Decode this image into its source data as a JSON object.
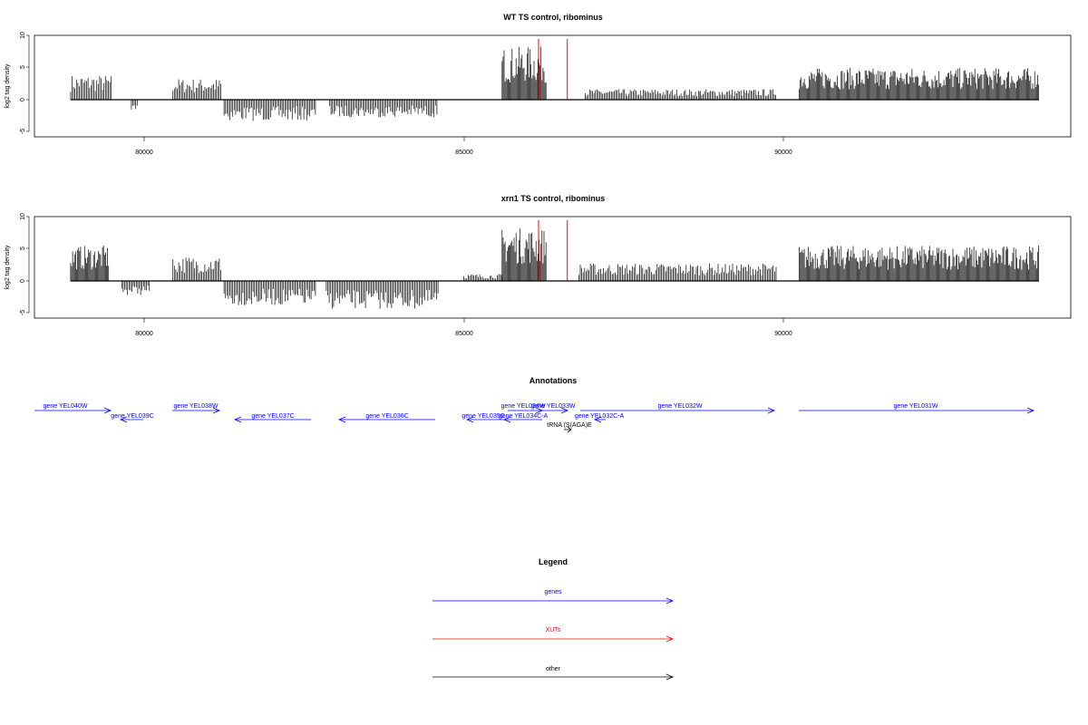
{
  "panels": [
    {
      "title": "WT TS control, ribominus",
      "ylabel": "log2 tag density",
      "yticks": [
        "10",
        "5",
        "0",
        "-5"
      ],
      "xticks": [
        "80000",
        "85000",
        "90000"
      ]
    },
    {
      "title": "xrn1 TS control, ribominus",
      "ylabel": "log2 tag density",
      "yticks": [
        "10",
        "5",
        "0",
        "-5"
      ],
      "xticks": [
        "80000",
        "85000",
        "90000"
      ]
    }
  ],
  "annotations": {
    "title": "Annotations",
    "items": [
      {
        "label": "gene YEL040W",
        "color": "#0000ff"
      },
      {
        "label": "gene YEL039C",
        "color": "#0000ff"
      },
      {
        "label": "gene YEL038W",
        "color": "#0000ff"
      },
      {
        "label": "gene YEL037C",
        "color": "#0000ff"
      },
      {
        "label": "gene YEL036C",
        "color": "#0000ff"
      },
      {
        "label": "gene YEL035C",
        "color": "#0000ff"
      },
      {
        "label": "gene YEL034W",
        "color": "#0000ff"
      },
      {
        "label": "gene YEL033W",
        "color": "#0000ff"
      },
      {
        "label": "gene YEL034C-A",
        "color": "#0000ff"
      },
      {
        "label": "gene YEL032C-A",
        "color": "#0000ff"
      },
      {
        "label": "gene YEL032W",
        "color": "#0000ff"
      },
      {
        "label": "gene YEL031W",
        "color": "#0000ff"
      },
      {
        "label": "tRNA (S(AGA)E",
        "color": "#000000"
      }
    ]
  },
  "legend": {
    "title": "Legend",
    "items": [
      {
        "label": "genes",
        "color": "#0000ff"
      },
      {
        "label": "XUTs",
        "color": "#ff0000"
      },
      {
        "label": "other",
        "color": "#000000"
      }
    ]
  },
  "chart_data": [
    {
      "type": "bar",
      "title": "WT TS control, ribominus",
      "ylabel": "log2 tag density",
      "xlabel": "",
      "xlim": [
        78200,
        94700
      ],
      "ylim": [
        -6,
        10
      ],
      "grid": false,
      "series": [
        {
          "segments": [
            {
              "from": 78850,
              "to": 79500,
              "value": 3.5
            },
            {
              "from": 79800,
              "to": 79900,
              "value": -1.5
            },
            {
              "from": 80450,
              "to": 81200,
              "value": 3.0
            },
            {
              "from": 81250,
              "to": 82700,
              "value": -3.0
            },
            {
              "from": 82900,
              "to": 84600,
              "value": -2.5
            },
            {
              "from": 85600,
              "to": 86300,
              "value": 7.5
            },
            {
              "from": 86900,
              "to": 88700,
              "value": 1.5
            },
            {
              "from": 88700,
              "to": 89900,
              "value": 1.5
            },
            {
              "from": 90250,
              "to": 94000,
              "value": 4.5
            }
          ]
        }
      ],
      "red_markers": [
        86170,
        86620
      ]
    },
    {
      "type": "bar",
      "title": "xrn1 TS control, ribominus",
      "ylabel": "log2 tag density",
      "xlabel": "",
      "xlim": [
        78200,
        94700
      ],
      "ylim": [
        -6,
        10
      ],
      "grid": false,
      "series": [
        {
          "segments": [
            {
              "from": 78850,
              "to": 79450,
              "value": 5.0
            },
            {
              "from": 79650,
              "to": 80100,
              "value": -2.0
            },
            {
              "from": 80450,
              "to": 81200,
              "value": 3.5
            },
            {
              "from": 81250,
              "to": 82700,
              "value": -3.5
            },
            {
              "from": 82850,
              "to": 84600,
              "value": -4.0
            },
            {
              "from": 85000,
              "to": 85600,
              "value": 1.0
            },
            {
              "from": 85600,
              "to": 86300,
              "value": 7.5
            },
            {
              "from": 86800,
              "to": 89900,
              "value": 2.5
            },
            {
              "from": 90250,
              "to": 94000,
              "value": 5.0
            }
          ]
        }
      ],
      "red_markers": [
        86170,
        86620
      ]
    }
  ]
}
